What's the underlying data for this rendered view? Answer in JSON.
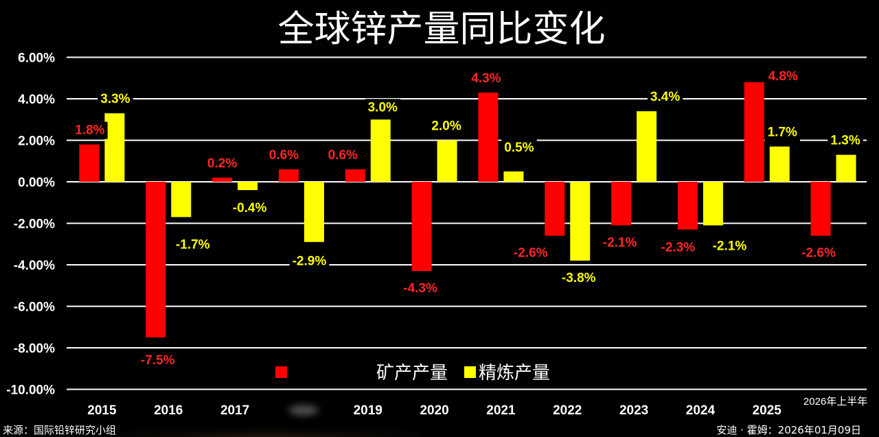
{
  "chart_data": {
    "type": "bar",
    "title": "全球锌产量同比变化",
    "categories": [
      "2015",
      "2016",
      "2017",
      "",
      "2019",
      "2020",
      "2021",
      "2022",
      "2023",
      "2024",
      "2025",
      "2026年上半年"
    ],
    "series": [
      {
        "name": "矿产产量",
        "color": "#ff0000",
        "label_color": "#ff2626",
        "values": [
          1.8,
          -7.5,
          0.2,
          0.6,
          0.6,
          -4.3,
          4.3,
          -2.6,
          -2.1,
          -2.3,
          4.8,
          -2.6
        ],
        "labels": [
          "1.8%",
          "-7.5%",
          "0.2%",
          "0.6%",
          "0.6%",
          "-4.3%",
          "4.3%",
          "-2.6%",
          "-2.1%",
          "-2.3%",
          "4.8%",
          "-2.6%"
        ]
      },
      {
        "name": "精炼产量",
        "color": "#ffff00",
        "label_color": "#ffff00",
        "values": [
          3.3,
          -1.7,
          -0.4,
          -2.9,
          3.0,
          2.0,
          0.5,
          -3.8,
          3.4,
          -2.1,
          1.7,
          1.3
        ],
        "labels": [
          "3.3%",
          "-1.7%",
          "-0.4%",
          "-2.9%",
          "3.0%",
          "2.0%",
          "0.5%",
          "-3.8%",
          "3.4%",
          "-2.1%",
          "1.7%",
          "1.3%"
        ]
      }
    ],
    "ylim": [
      -10,
      6
    ],
    "y_ticks": [
      6,
      4,
      2,
      0,
      -2,
      -4,
      -6,
      -8,
      -10
    ],
    "y_tick_labels": [
      "6.00%",
      "4.00%",
      "2.00%",
      "0.00%",
      "-2.00%",
      "-4.00%",
      "-6.00%",
      "-8.00%",
      "-10.00%"
    ],
    "grid": true,
    "legend_position": "bottom-center"
  },
  "footer": {
    "source": "来源：国际铅锌研究小组",
    "author_date": "安迪 · 霍姆：2026年01月09日"
  },
  "colors": {
    "background": "#000000",
    "text": "#ffffff",
    "grid": "#ffffff"
  }
}
